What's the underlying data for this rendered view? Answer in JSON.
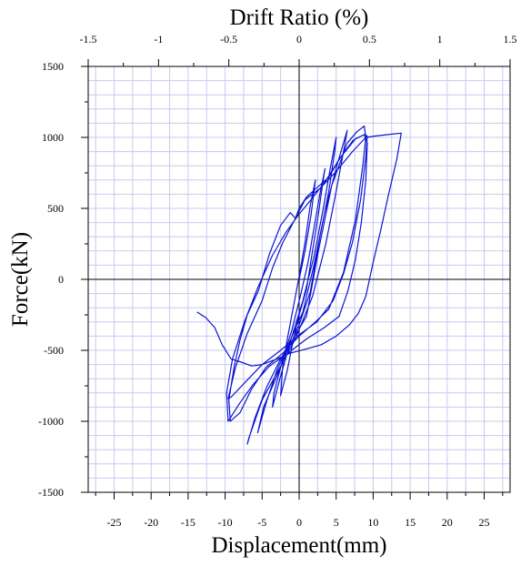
{
  "chart_data": {
    "type": "line",
    "title": "",
    "xlabel": "Displacement(mm)",
    "ylabel": "Force(kN)",
    "x2label": "Drift Ratio (%)",
    "xlim": [
      -28.5,
      28.5
    ],
    "ylim": [
      -1500,
      1500
    ],
    "x2lim": [
      -1.5,
      1.5
    ],
    "x_ticks": [
      -25,
      -20,
      -15,
      -10,
      -5,
      0,
      5,
      10,
      15,
      20,
      25
    ],
    "x_tick_labels": [
      "-25",
      "-20",
      "-15",
      "-10",
      "-5",
      "0",
      "5",
      "10",
      "15",
      "20",
      "25"
    ],
    "y_ticks": [
      -1500,
      -1000,
      -500,
      0,
      500,
      1000,
      1500
    ],
    "y_tick_labels": [
      "-1500",
      "-1000",
      "-500",
      "0",
      "500",
      "1000",
      "1500"
    ],
    "x2_ticks": [
      -1.5,
      -1,
      -0.5,
      0,
      0.5,
      1,
      1.5
    ],
    "x2_tick_labels": [
      "-1.5",
      "-1",
      "-0.5",
      "0",
      "0.5",
      "1",
      "1.5"
    ],
    "grid": true,
    "colors": {
      "series": "#0a14d2",
      "grid": "#c8c8f0",
      "axis": "#000000"
    },
    "series": [
      {
        "values": [
          [
            0,
            0
          ],
          [
            0.8,
            200
          ],
          [
            1.6,
            450
          ],
          [
            2.1,
            660
          ],
          [
            2.2,
            700
          ],
          [
            1.5,
            520
          ],
          [
            0.8,
            260
          ],
          [
            0,
            20
          ],
          [
            -0.8,
            -200
          ],
          [
            -1.6,
            -420
          ],
          [
            -2.2,
            -600
          ],
          [
            -2.5,
            -820
          ],
          [
            -1.6,
            -640
          ],
          [
            -0.8,
            -430
          ],
          [
            0,
            -250
          ],
          [
            1,
            -70
          ],
          [
            1.8,
            200
          ],
          [
            2.6,
            460
          ],
          [
            3.3,
            720
          ],
          [
            3.5,
            780
          ],
          [
            2.8,
            600
          ],
          [
            2,
            360
          ],
          [
            1.2,
            120
          ],
          [
            0.2,
            -110
          ],
          [
            -1,
            -360
          ],
          [
            -2.2,
            -560
          ],
          [
            -3.4,
            -800
          ],
          [
            -3.6,
            -900
          ],
          [
            -2.6,
            -700
          ],
          [
            -1.5,
            -500
          ],
          [
            0,
            -320
          ],
          [
            1.5,
            -90
          ],
          [
            2.8,
            300
          ],
          [
            4,
            620
          ],
          [
            4.8,
            900
          ],
          [
            5,
            1000
          ],
          [
            4.2,
            780
          ],
          [
            3.2,
            480
          ],
          [
            2,
            160
          ],
          [
            0.5,
            -150
          ],
          [
            -1.2,
            -440
          ],
          [
            -3,
            -680
          ],
          [
            -4.8,
            -900
          ],
          [
            -5.6,
            -1080
          ],
          [
            -4.4,
            -860
          ],
          [
            -3,
            -640
          ],
          [
            -1.2,
            -430
          ],
          [
            0.5,
            -230
          ],
          [
            2,
            100
          ],
          [
            3.4,
            460
          ],
          [
            5.2,
            820
          ],
          [
            6.5,
            1050
          ],
          [
            6.2,
            960
          ],
          [
            5,
            620
          ],
          [
            3.6,
            250
          ],
          [
            1.8,
            -120
          ],
          [
            -0.5,
            -420
          ],
          [
            -2.8,
            -640
          ],
          [
            -5,
            -850
          ],
          [
            -6.8,
            -1120
          ],
          [
            -7,
            -1160
          ],
          [
            -6,
            -980
          ],
          [
            -4.4,
            -760
          ],
          [
            -2.5,
            -560
          ],
          [
            -0.8,
            -420
          ],
          [
            1,
            -260
          ],
          [
            2.6,
            200
          ],
          [
            4.4,
            660
          ],
          [
            6.5,
            960
          ],
          [
            7.8,
            1040
          ],
          [
            8.8,
            1080
          ],
          [
            9,
            1000
          ],
          [
            8.6,
            800
          ],
          [
            7.6,
            420
          ],
          [
            6,
            50
          ],
          [
            4,
            -210
          ],
          [
            2.2,
            -300
          ],
          [
            0,
            -400
          ],
          [
            -2.2,
            -520
          ],
          [
            -4.5,
            -620
          ],
          [
            -6.5,
            -780
          ],
          [
            -8,
            -940
          ],
          [
            -9.3,
            -1000
          ],
          [
            -9.5,
            -850
          ],
          [
            -8.8,
            -620
          ],
          [
            -8,
            -430
          ],
          [
            -7,
            -250
          ],
          [
            -5.5,
            -80
          ],
          [
            -4,
            180
          ],
          [
            -2.5,
            380
          ],
          [
            -1.2,
            470
          ],
          [
            -0.5,
            430
          ],
          [
            0,
            500
          ],
          [
            1,
            580
          ],
          [
            2.5,
            650
          ],
          [
            4,
            720
          ],
          [
            5.6,
            860
          ],
          [
            7.3,
            980
          ],
          [
            8.8,
            1020
          ],
          [
            9.2,
            960
          ],
          [
            9,
            700
          ],
          [
            8.4,
            400
          ],
          [
            7.6,
            140
          ],
          [
            6.6,
            -80
          ],
          [
            5.4,
            -260
          ],
          [
            3.4,
            -340
          ],
          [
            1,
            -420
          ],
          [
            -1.5,
            -520
          ],
          [
            -4,
            -610
          ],
          [
            -6.2,
            -740
          ],
          [
            -8,
            -870
          ],
          [
            -9.6,
            -1000
          ],
          [
            -9.8,
            -800
          ],
          [
            -9,
            -560
          ],
          [
            -7.4,
            -300
          ],
          [
            -5.6,
            -60
          ],
          [
            -3.6,
            170
          ],
          [
            -1.8,
            330
          ],
          [
            0,
            460
          ],
          [
            1.6,
            560
          ],
          [
            3.4,
            680
          ],
          [
            5.6,
            860
          ],
          [
            7.6,
            990
          ],
          [
            8.8,
            1020
          ],
          [
            9.2,
            1010
          ],
          [
            9,
            860
          ],
          [
            8.3,
            560
          ],
          [
            7.2,
            260
          ],
          [
            6,
            40
          ],
          [
            4.6,
            -150
          ],
          [
            2.4,
            -300
          ],
          [
            0,
            -390
          ],
          [
            -2.5,
            -500
          ],
          [
            -5,
            -600
          ],
          [
            -7.2,
            -720
          ],
          [
            -9.2,
            -830
          ],
          [
            -9.6,
            -840
          ],
          [
            -8.6,
            -620
          ],
          [
            -7,
            -380
          ],
          [
            -5,
            -150
          ],
          [
            -3.6,
            80
          ],
          [
            -2.2,
            260
          ],
          [
            -0.6,
            420
          ],
          [
            0.8,
            560
          ],
          [
            2.8,
            640
          ],
          [
            5,
            760
          ],
          [
            7.2,
            900
          ],
          [
            9,
            1000
          ],
          [
            10.4,
            1010
          ],
          [
            12,
            1020
          ],
          [
            13.8,
            1030
          ],
          [
            13.2,
            850
          ],
          [
            12,
            580
          ],
          [
            11,
            340
          ],
          [
            10,
            120
          ],
          [
            9,
            -120
          ],
          [
            8,
            -240
          ],
          [
            6.8,
            -320
          ],
          [
            5,
            -400
          ],
          [
            3,
            -460
          ],
          [
            1,
            -490
          ],
          [
            -1.2,
            -520
          ],
          [
            -3,
            -560
          ],
          [
            -5,
            -600
          ],
          [
            -6.4,
            -610
          ],
          [
            -8,
            -580
          ],
          [
            -9.2,
            -560
          ],
          [
            -10.4,
            -460
          ],
          [
            -11.4,
            -340
          ],
          [
            -12.6,
            -270
          ],
          [
            -13.8,
            -230
          ]
        ]
      }
    ]
  }
}
